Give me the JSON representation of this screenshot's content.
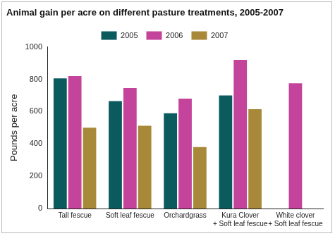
{
  "chart_data": {
    "type": "bar",
    "title": "Animal gain per acre on different pasture treatments, 2005-2007",
    "y_label": "Pounds per acre",
    "categories": [
      "Tall fescue",
      "Soft leaf fescue",
      "Orchardgrass",
      "Kura Clover + Soft leaf fescue",
      "White clover + Soft leaf fescue"
    ],
    "series": [
      {
        "name": "2005",
        "color": "#0b5a5e",
        "values": [
          805,
          665,
          590,
          700,
          null
        ]
      },
      {
        "name": "2006",
        "color": "#c4449b",
        "values": [
          820,
          745,
          680,
          920,
          775
        ]
      },
      {
        "name": "2007",
        "color": "#a8893a",
        "values": [
          500,
          512,
          380,
          615,
          null
        ]
      }
    ],
    "ylim": [
      0,
      1000
    ],
    "yticks": [
      0,
      200,
      400,
      600,
      800,
      1000
    ],
    "grid": false,
    "legend": "top"
  }
}
